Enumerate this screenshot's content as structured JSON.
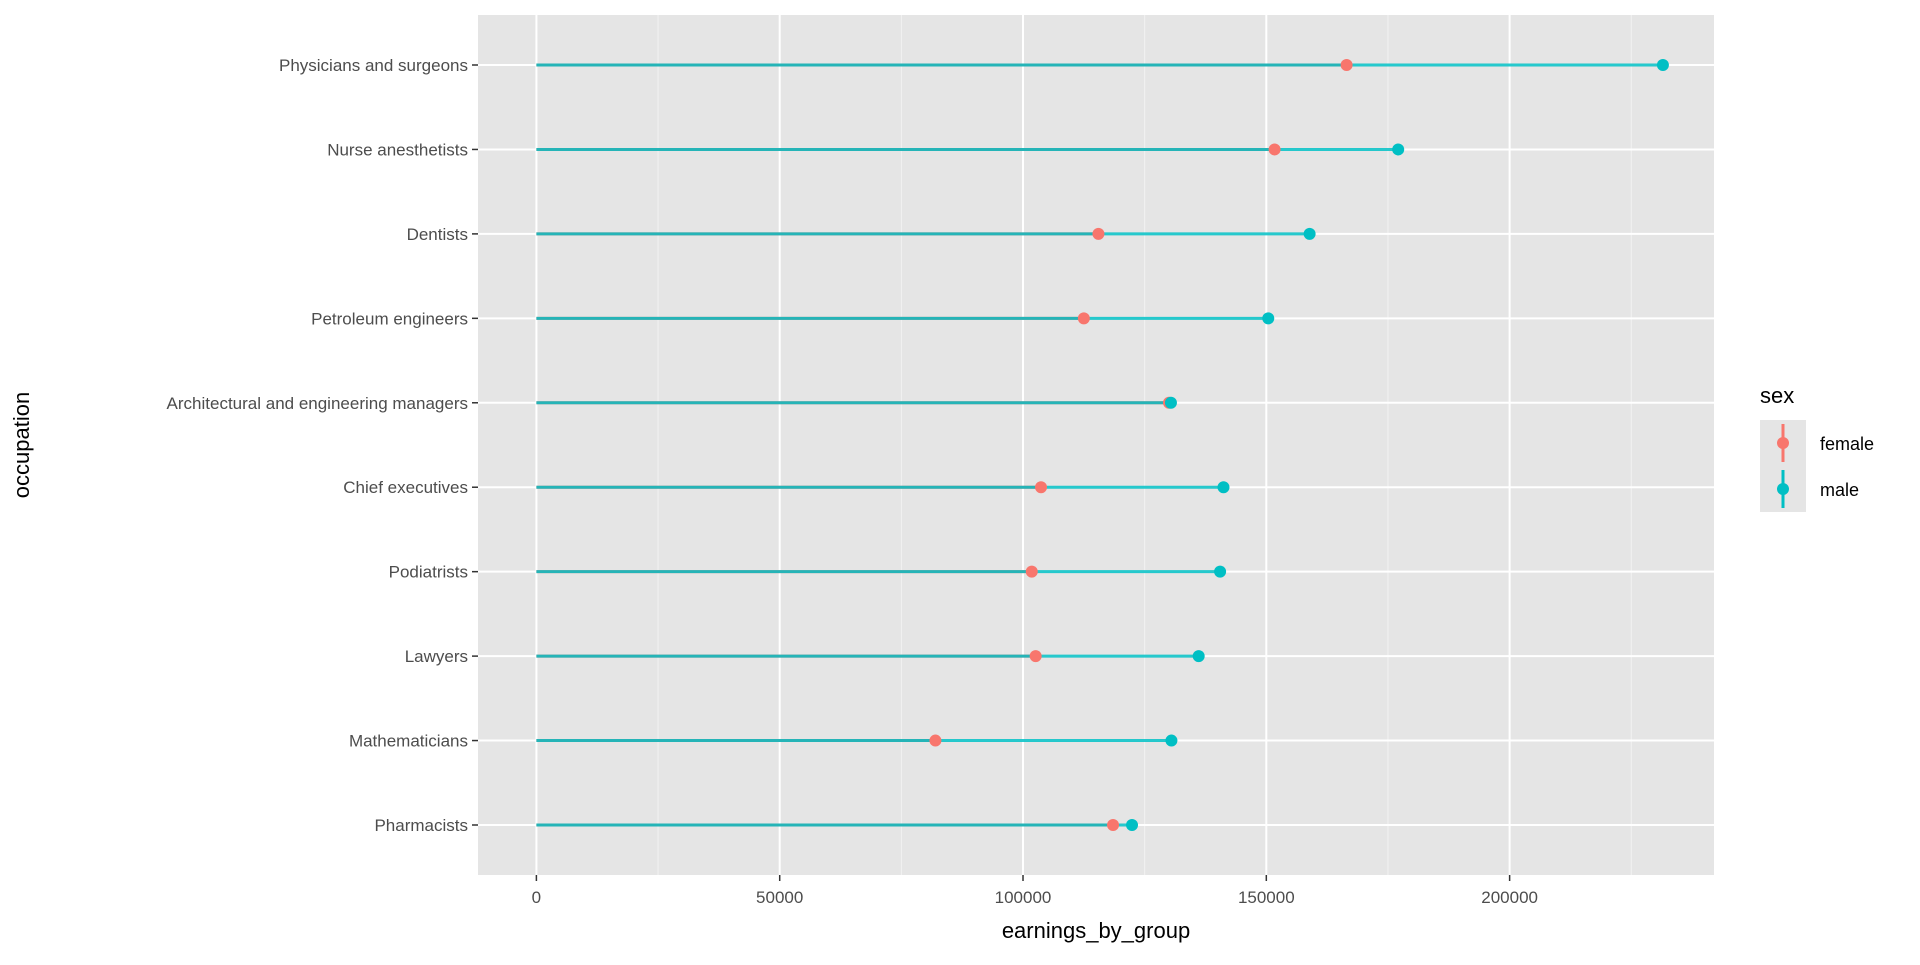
{
  "chart_data": {
    "type": "dumbbell",
    "title": "",
    "xlabel": "earnings_by_group",
    "ylabel": "occupation",
    "xlim": [
      -12000,
      242000
    ],
    "x_ticks": [
      0,
      50000,
      100000,
      150000,
      200000
    ],
    "x_tick_labels": [
      "0",
      "50000",
      "100000",
      "150000",
      "200000"
    ],
    "grid": true,
    "legend": {
      "title": "sex",
      "placement": "right",
      "entries": [
        "female",
        "male"
      ]
    },
    "colors": {
      "female": "#F8766D",
      "male": "#00BFC4",
      "panel": "#E5E5E5",
      "grid": "#FFFFFF"
    },
    "categories": [
      "Physicians and surgeons",
      "Nurse anesthetists",
      "Dentists",
      "Petroleum engineers",
      "Architectural and engineering managers",
      "Chief executives",
      "Podiatrists",
      "Lawyers",
      "Mathematicians",
      "Pharmacists"
    ],
    "series": [
      {
        "name": "female",
        "values": [
          166500,
          151700,
          115500,
          112500,
          130000,
          103700,
          101800,
          102600,
          82000,
          118500
        ]
      },
      {
        "name": "male",
        "values": [
          231500,
          177100,
          158900,
          150400,
          130400,
          141200,
          140500,
          136100,
          130500,
          122400
        ]
      }
    ]
  }
}
